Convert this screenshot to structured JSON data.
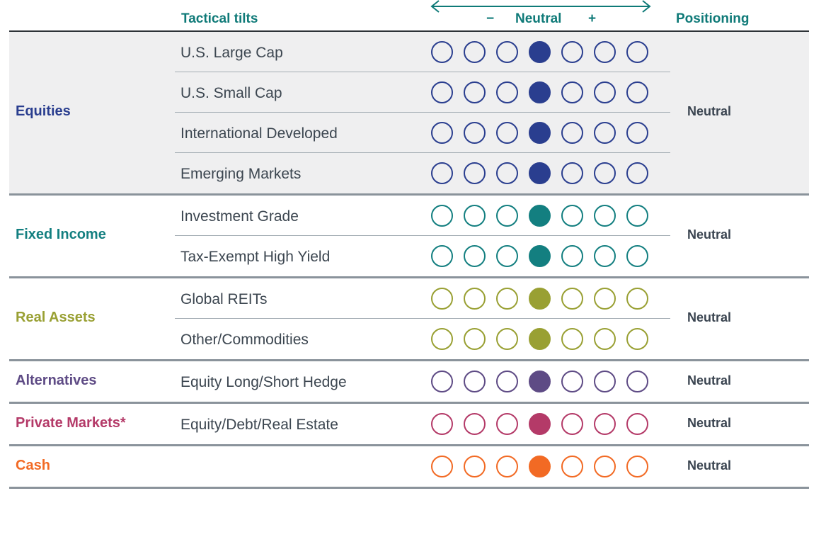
{
  "header": {
    "tactical_tilts": "Tactical tilts",
    "minus": "−",
    "neutral": "Neutral",
    "plus": "+",
    "positioning": "Positioning"
  },
  "scale": {
    "dot_count": 7,
    "selected_index": 3
  },
  "colors": {
    "header_teal": "#0f7a78"
  },
  "groups": [
    {
      "name": "Equities",
      "color": "#2a3e8f",
      "positioning": "Neutral",
      "shaded": true,
      "rows": [
        {
          "label": "U.S. Large Cap",
          "tilt": 0
        },
        {
          "label": "U.S. Small Cap",
          "tilt": 0
        },
        {
          "label": "International Developed",
          "tilt": 0
        },
        {
          "label": "Emerging Markets",
          "tilt": 0
        }
      ]
    },
    {
      "name": "Fixed Income",
      "color": "#137f80",
      "positioning": "Neutral",
      "shaded": false,
      "rows": [
        {
          "label": "Investment Grade",
          "tilt": 0
        },
        {
          "label": "Tax-Exempt High Yield",
          "tilt": 0
        }
      ]
    },
    {
      "name": "Real Assets",
      "color": "#99a033",
      "positioning": "Neutral",
      "shaded": false,
      "rows": [
        {
          "label": "Global REITs",
          "tilt": 0
        },
        {
          "label": "Other/Commodities",
          "tilt": 0
        }
      ]
    },
    {
      "name": "Alternatives",
      "color": "#5e4b85",
      "positioning": "Neutral",
      "shaded": false,
      "rows": [
        {
          "label": "Equity Long/Short Hedge",
          "tilt": 0
        }
      ]
    },
    {
      "name": "Private Markets*",
      "color": "#b43a68",
      "positioning": "Neutral",
      "shaded": false,
      "rows": [
        {
          "label": "Equity/Debt/Real Estate",
          "tilt": 0
        }
      ]
    },
    {
      "name": "Cash",
      "color": "#f26a24",
      "positioning": "Neutral",
      "shaded": false,
      "rows": [
        {
          "label": "",
          "tilt": 0
        }
      ]
    }
  ]
}
